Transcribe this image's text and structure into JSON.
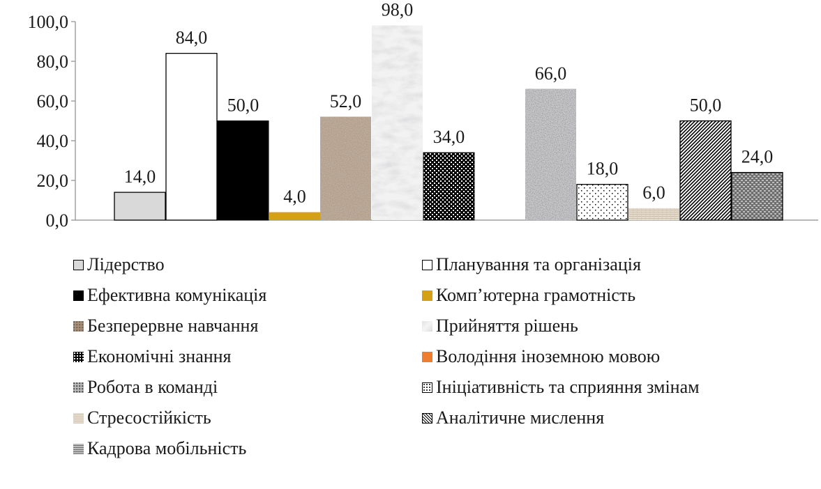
{
  "chart_data": {
    "type": "bar",
    "title": "",
    "xlabel": "",
    "ylabel": "",
    "ylim": [
      0,
      100
    ],
    "yticks": [
      "0,0",
      "20,0",
      "40,0",
      "60,0",
      "80,0",
      "100,0"
    ],
    "grid": false,
    "legend_position": "bottom",
    "series": [
      {
        "name": "Лідерство",
        "value": 14.0,
        "label": "14,0",
        "pattern": "light-gray",
        "color": "#d9d9d9"
      },
      {
        "name": "Планування та організація",
        "value": 84.0,
        "label": "84,0",
        "pattern": "white",
        "color": "#ffffff"
      },
      {
        "name": "Ефективна комунікація",
        "value": 50.0,
        "label": "50,0",
        "pattern": "black",
        "color": "#000000"
      },
      {
        "name": "Комп’ютерна грамотність",
        "value": 4.0,
        "label": "4,0",
        "pattern": "gold",
        "color": "#d4a017"
      },
      {
        "name": "Безперервне навчання",
        "value": 52.0,
        "label": "52,0",
        "pattern": "brown-granite",
        "color": "#9c8572"
      },
      {
        "name": "Прийняття рішень",
        "value": 98.0,
        "label": "98,0",
        "pattern": "white-marble",
        "color": "#e6e6e6"
      },
      {
        "name": "Економічні знання",
        "value": 34.0,
        "label": "34,0",
        "pattern": "black-dots",
        "color": "#000000"
      },
      {
        "name": "Володіння іноземною мовою",
        "value": 0,
        "label": "",
        "pattern": "orange",
        "color": "#ed7d31"
      },
      {
        "name": "Робота в команді",
        "value": 66.0,
        "label": "66,0",
        "pattern": "gray-granite",
        "color": "#a6a6a6"
      },
      {
        "name": "Ініціативність  та сприяння змінам",
        "value": 18.0,
        "label": "18,0",
        "pattern": "white-dots",
        "color": "#ffffff"
      },
      {
        "name": "Стресостійкість",
        "value": 6.0,
        "label": "6,0",
        "pattern": "beige-weave",
        "color": "#ddd3c3"
      },
      {
        "name": "Аналітичне мислення",
        "value": 50.0,
        "label": "50,0",
        "pattern": "diagonal-hatch",
        "color": "#ffffff"
      },
      {
        "name": "Кадрова мобільність",
        "value": 24.0,
        "label": "24,0",
        "pattern": "gray-weave",
        "color": "#8c8c8c"
      }
    ]
  }
}
